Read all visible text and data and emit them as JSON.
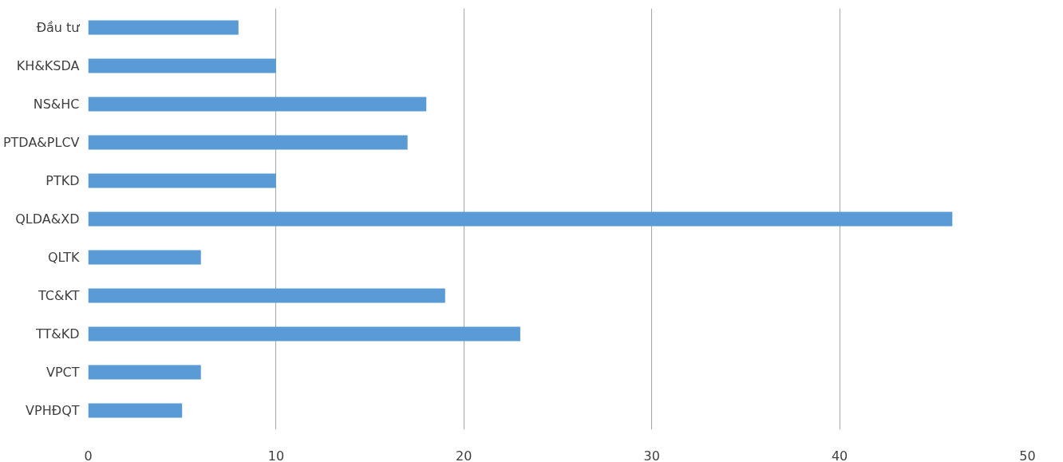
{
  "chart_data": {
    "type": "bar",
    "orientation": "horizontal",
    "categories": [
      "Đầu tư",
      "KH&KSDA",
      "NS&HC",
      "PTDA&PLCV",
      "PTKD",
      "QLDA&XD",
      "QLTK",
      "TC&KT",
      "TT&KD",
      "VPCT",
      "VPHĐQT"
    ],
    "values": [
      8,
      10,
      18,
      17,
      10,
      46,
      6,
      19,
      23,
      6,
      5
    ],
    "color": "#5b9bd5",
    "xlim": [
      0,
      50
    ],
    "xticks": [
      0,
      10,
      20,
      30,
      40,
      50
    ],
    "grid": "x"
  }
}
